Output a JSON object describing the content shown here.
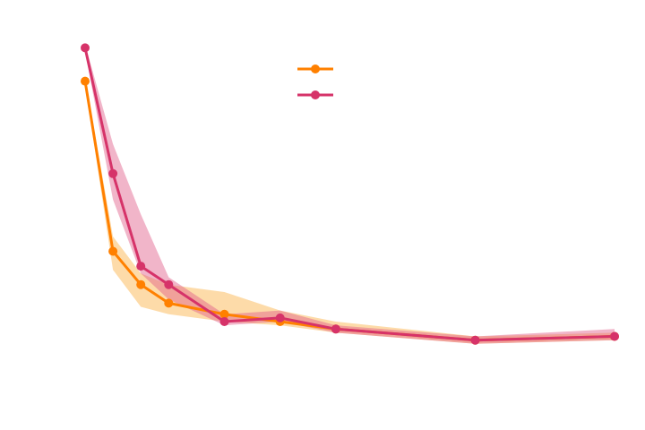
{
  "chart_data": {
    "type": "line",
    "title": "",
    "xlabel": "",
    "ylabel": "",
    "x": [
      1,
      2,
      3,
      4,
      6,
      8,
      10,
      15,
      20
    ],
    "xlim": [
      1,
      20
    ],
    "ylim": [
      0,
      1
    ],
    "grid": false,
    "legend": {
      "placement": "top-center",
      "entries": [
        "",
        ""
      ]
    },
    "series": [
      {
        "name": "",
        "color": "#FF8000",
        "band_color": "#FBB040",
        "values": [
          0.88,
          0.42,
          0.33,
          0.28,
          0.25,
          0.23,
          0.21,
          0.18,
          0.19
        ],
        "lower": [
          0.87,
          0.37,
          0.27,
          0.25,
          0.23,
          0.22,
          0.2,
          0.17,
          0.18
        ],
        "upper": [
          0.89,
          0.46,
          0.36,
          0.33,
          0.31,
          0.26,
          0.23,
          0.19,
          0.2
        ]
      },
      {
        "name": "",
        "color": "#D63369",
        "band_color": "#E05A87",
        "values": [
          0.97,
          0.63,
          0.38,
          0.33,
          0.23,
          0.24,
          0.21,
          0.18,
          0.19
        ],
        "lower": [
          0.96,
          0.56,
          0.36,
          0.29,
          0.22,
          0.23,
          0.2,
          0.17,
          0.18
        ],
        "upper": [
          0.98,
          0.71,
          0.52,
          0.35,
          0.25,
          0.26,
          0.22,
          0.19,
          0.21
        ]
      }
    ]
  }
}
